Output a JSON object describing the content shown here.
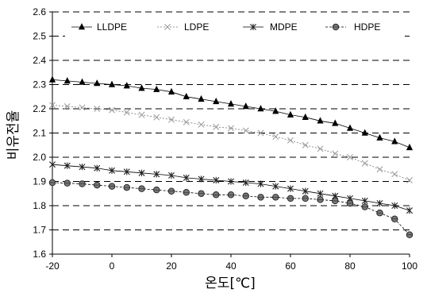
{
  "chart_data": {
    "type": "line",
    "xlabel": "온도[℃]",
    "ylabel": "비유전율",
    "xlim": [
      -20,
      100
    ],
    "ylim": [
      1.6,
      2.6
    ],
    "xticks": [
      "-20",
      "0",
      "20",
      "40",
      "60",
      "80",
      "100"
    ],
    "yticks": [
      "1.6",
      "1.7",
      "1.8",
      "1.9",
      "2.0",
      "2.1",
      "2.2",
      "2.3",
      "2.4",
      "2.5",
      "2.6"
    ],
    "grid": "horizontal-dashed",
    "legend": "top",
    "x": [
      -20,
      -15,
      -10,
      -5,
      0,
      5,
      10,
      15,
      20,
      25,
      30,
      35,
      40,
      45,
      50,
      55,
      60,
      65,
      70,
      75,
      80,
      85,
      90,
      95,
      100
    ],
    "series": [
      {
        "name": "LLDPE",
        "marker": "triangle",
        "color": "#000000",
        "values": [
          2.32,
          2.315,
          2.31,
          2.305,
          2.3,
          2.295,
          2.285,
          2.28,
          2.27,
          2.25,
          2.24,
          2.23,
          2.22,
          2.21,
          2.2,
          2.19,
          2.175,
          2.165,
          2.15,
          2.14,
          2.12,
          2.1,
          2.08,
          2.065,
          2.04
        ]
      },
      {
        "name": "LDPE",
        "marker": "x",
        "color": "#888888",
        "values": [
          2.215,
          2.21,
          2.205,
          2.2,
          2.195,
          2.185,
          2.175,
          2.165,
          2.155,
          2.145,
          2.135,
          2.125,
          2.12,
          2.11,
          2.1,
          2.085,
          2.07,
          2.05,
          2.035,
          2.015,
          2.0,
          1.975,
          1.95,
          1.93,
          1.905
        ]
      },
      {
        "name": "MDPE",
        "marker": "asterisk",
        "color": "#333333",
        "values": [
          1.97,
          1.965,
          1.96,
          1.955,
          1.945,
          1.94,
          1.935,
          1.93,
          1.925,
          1.915,
          1.91,
          1.905,
          1.9,
          1.895,
          1.89,
          1.88,
          1.87,
          1.86,
          1.85,
          1.84,
          1.83,
          1.82,
          1.81,
          1.8,
          1.78
        ]
      },
      {
        "name": "HDPE",
        "marker": "circle",
        "color": "#555555",
        "values": [
          1.895,
          1.893,
          1.89,
          1.885,
          1.88,
          1.875,
          1.87,
          1.865,
          1.86,
          1.855,
          1.85,
          1.845,
          1.845,
          1.84,
          1.835,
          1.835,
          1.83,
          1.83,
          1.825,
          1.82,
          1.81,
          1.795,
          1.77,
          1.745,
          1.68
        ]
      }
    ]
  }
}
